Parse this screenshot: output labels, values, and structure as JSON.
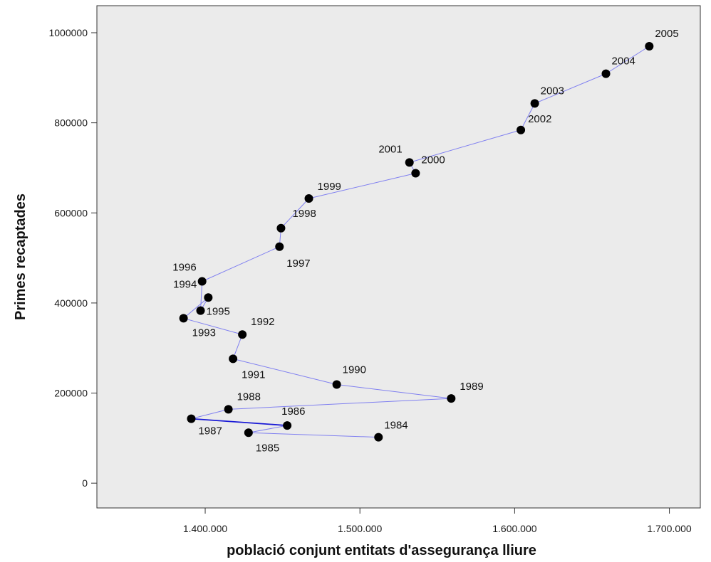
{
  "chart_data": {
    "type": "scatter",
    "xlabel": "població conjunt entitats d'assegurança lliure",
    "ylabel": "Primes recaptades",
    "xlim": [
      1330000,
      1720000
    ],
    "ylim": [
      -55000,
      1060000
    ],
    "x_ticks": [
      1400000,
      1500000,
      1600000,
      1700000
    ],
    "x_tick_labels": [
      "1.400.000",
      "1.500.000",
      "1.600.000",
      "1.700.000"
    ],
    "y_ticks": [
      0,
      200000,
      400000,
      600000,
      800000,
      1000000
    ],
    "y_tick_labels": [
      "0",
      "200000",
      "400000",
      "600000",
      "800000",
      "1000000"
    ],
    "grid": false,
    "connect_points_in_order": true,
    "colors": {
      "plot_background": "#ebebeb",
      "page_background": "#ffffff",
      "axis": "#333333",
      "point": "#000000",
      "line": "#8080f0",
      "line_highlight": "#1a1ad6"
    },
    "points": [
      {
        "label": "1984",
        "x": 1512000,
        "y": 102000
      },
      {
        "label": "1985",
        "x": 1428000,
        "y": 112000
      },
      {
        "label": "1986",
        "x": 1453000,
        "y": 128000
      },
      {
        "label": "1987",
        "x": 1391000,
        "y": 143000
      },
      {
        "label": "1988",
        "x": 1415000,
        "y": 164000
      },
      {
        "label": "1989",
        "x": 1559000,
        "y": 188000
      },
      {
        "label": "1990",
        "x": 1485000,
        "y": 219000
      },
      {
        "label": "1991",
        "x": 1418000,
        "y": 276000
      },
      {
        "label": "1992",
        "x": 1424000,
        "y": 330000
      },
      {
        "label": "1993",
        "x": 1386000,
        "y": 366000
      },
      {
        "label": "1994",
        "x": 1402000,
        "y": 412000
      },
      {
        "label": "1995",
        "x": 1397000,
        "y": 383000
      },
      {
        "label": "1996",
        "x": 1398000,
        "y": 448000
      },
      {
        "label": "1997",
        "x": 1448000,
        "y": 525000
      },
      {
        "label": "1998",
        "x": 1449000,
        "y": 566000
      },
      {
        "label": "1999",
        "x": 1467000,
        "y": 632000
      },
      {
        "label": "2000",
        "x": 1536000,
        "y": 688000
      },
      {
        "label": "2001",
        "x": 1532000,
        "y": 712000
      },
      {
        "label": "2002",
        "x": 1604000,
        "y": 784000
      },
      {
        "label": "2003",
        "x": 1613000,
        "y": 843000
      },
      {
        "label": "2004",
        "x": 1659000,
        "y": 909000
      },
      {
        "label": "2005",
        "x": 1687000,
        "y": 970000
      }
    ]
  }
}
